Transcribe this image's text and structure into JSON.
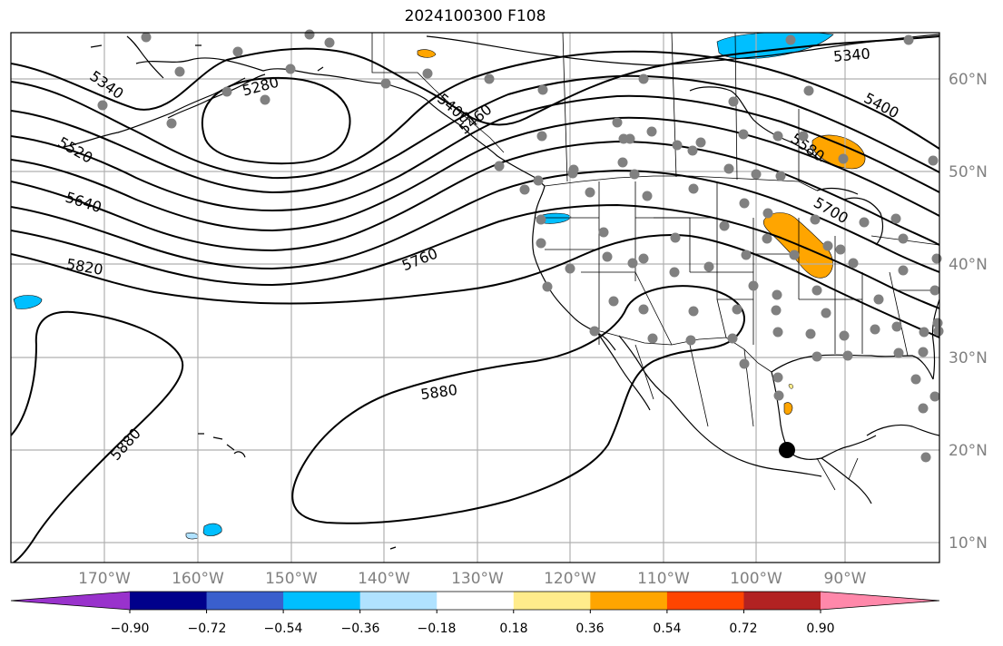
{
  "title": "2024100300 F108",
  "lon_ticks": [
    "170°W",
    "160°W",
    "150°W",
    "140°W",
    "130°W",
    "120°W",
    "110°W",
    "100°W",
    "90°W"
  ],
  "lat_ticks": [
    "60°N",
    "50°N",
    "40°N",
    "30°N",
    "20°N",
    "10°N"
  ],
  "colorbar": {
    "ticks": [
      "−0.90",
      "−0.72",
      "−0.54",
      "−0.36",
      "−0.18",
      "0.18",
      "0.36",
      "0.54",
      "0.72",
      "0.90"
    ],
    "colors": [
      "#9932cc",
      "#00008b",
      "#3a5fcd",
      "#00bfff",
      "#b0e2ff",
      "#ffffff",
      "#ffec8b",
      "#ffa500",
      "#ff4500",
      "#b22222",
      "#ff88aa"
    ]
  },
  "contour_labels": [
    "5340",
    "5280",
    "5520",
    "5640",
    "5820",
    "5400",
    "5580",
    "5700",
    "5760",
    "5880",
    "5880",
    "5340",
    "5400",
    "5460"
  ],
  "colors": {
    "contour": "#000000",
    "station": "#808080",
    "marker": "#000000",
    "grid": "#b0b0b0"
  }
}
